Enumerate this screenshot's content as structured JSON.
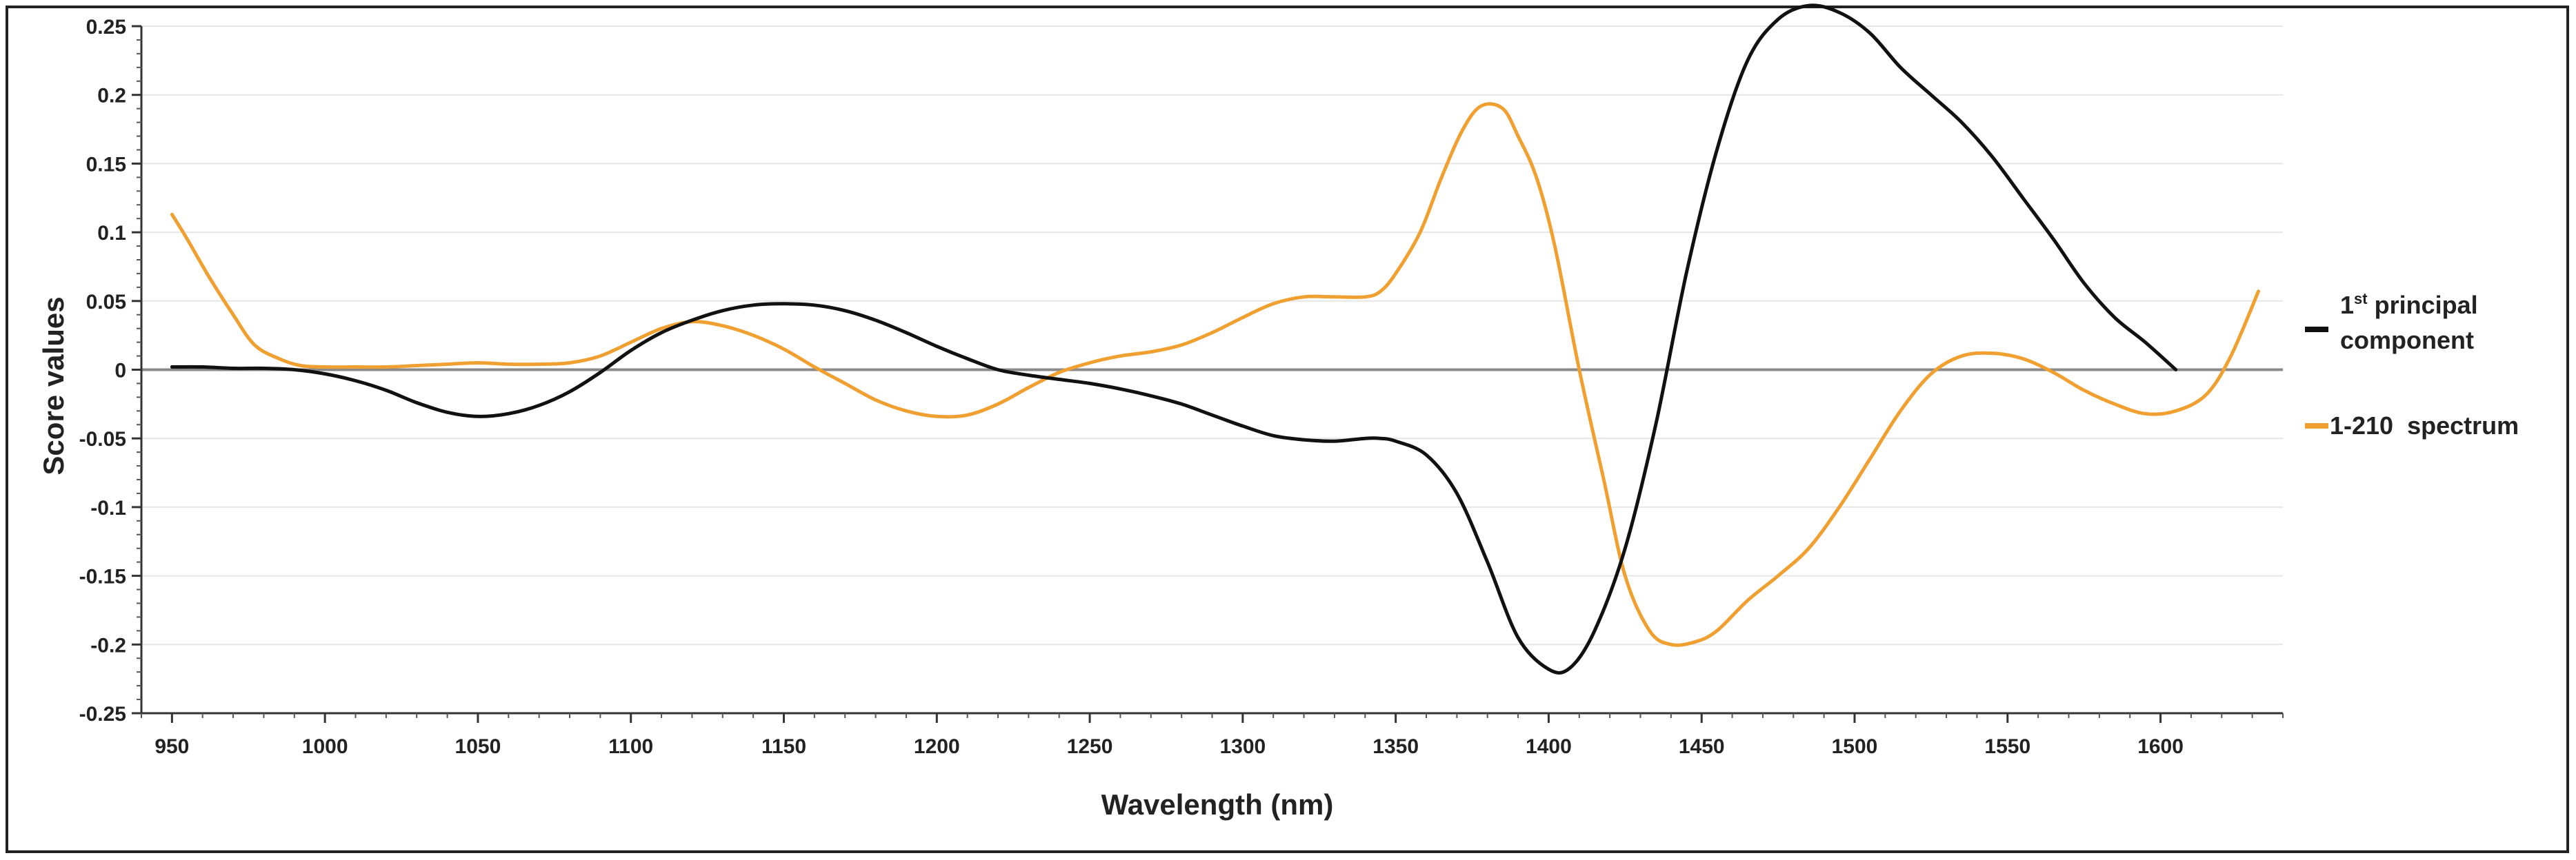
{
  "chart_data": {
    "type": "line",
    "title": "",
    "xlabel": "Wavelength (nm)",
    "ylabel": "Score values",
    "xlim": [
      940,
      1640
    ],
    "ylim": [
      -0.25,
      0.25
    ],
    "x_ticks": [
      950,
      1000,
      1050,
      1100,
      1150,
      1200,
      1250,
      1300,
      1350,
      1400,
      1450,
      1500,
      1550,
      1600
    ],
    "x_tick_labels": [
      "950",
      "1000",
      "1050",
      "1100",
      "1150",
      "1200",
      "1250",
      "1300",
      "1350",
      "1400",
      "1450",
      "1500",
      "1550",
      "1600"
    ],
    "y_ticks": [
      0.25,
      0.2,
      0.15,
      0.1,
      0.05,
      0,
      -0.05,
      -0.1,
      -0.15,
      -0.2,
      -0.25
    ],
    "y_tick_labels": [
      "0.25",
      "0.2",
      "0.15",
      "0.1",
      "0.05",
      "0",
      "-0.05",
      "-0.1",
      "-0.15",
      "-0.2",
      "-0.25"
    ],
    "grid": true,
    "legend_position": "right",
    "series": [
      {
        "name": "1st principal component",
        "legend_main": "1",
        "legend_sup": "st",
        "legend_rest": "principal",
        "legend_line2": "component",
        "color": "#111111",
        "x": [
          950,
          960,
          970,
          980,
          990,
          1000,
          1010,
          1020,
          1030,
          1040,
          1050,
          1060,
          1070,
          1080,
          1090,
          1100,
          1110,
          1120,
          1130,
          1140,
          1150,
          1160,
          1170,
          1180,
          1190,
          1200,
          1210,
          1220,
          1230,
          1240,
          1250,
          1260,
          1270,
          1280,
          1290,
          1300,
          1310,
          1320,
          1330,
          1340,
          1345,
          1350,
          1360,
          1370,
          1380,
          1390,
          1400,
          1407,
          1415,
          1425,
          1435,
          1445,
          1455,
          1465,
          1475,
          1485,
          1495,
          1505,
          1515,
          1525,
          1535,
          1545,
          1555,
          1565,
          1575,
          1585,
          1595,
          1605
        ],
        "values": [
          0.002,
          0.002,
          0.001,
          0.001,
          0.0,
          -0.003,
          -0.008,
          -0.015,
          -0.024,
          -0.031,
          -0.034,
          -0.032,
          -0.026,
          -0.016,
          -0.002,
          0.014,
          0.027,
          0.036,
          0.043,
          0.047,
          0.048,
          0.047,
          0.043,
          0.036,
          0.027,
          0.017,
          0.008,
          0.0,
          -0.004,
          -0.007,
          -0.01,
          -0.014,
          -0.019,
          -0.025,
          -0.033,
          -0.041,
          -0.048,
          -0.051,
          -0.052,
          -0.05,
          -0.05,
          -0.052,
          -0.062,
          -0.09,
          -0.14,
          -0.195,
          -0.218,
          -0.217,
          -0.19,
          -0.13,
          -0.04,
          0.07,
          0.16,
          0.225,
          0.255,
          0.265,
          0.26,
          0.245,
          0.22,
          0.2,
          0.18,
          0.155,
          0.125,
          0.095,
          0.063,
          0.038,
          0.02,
          0.0
        ]
      },
      {
        "name": "1-210 spectrum",
        "legend_main": "1-210  spectrum",
        "color": "#F0A030",
        "x": [
          950,
          955,
          962,
          970,
          977,
          985,
          992,
          1000,
          1010,
          1020,
          1030,
          1040,
          1050,
          1060,
          1070,
          1080,
          1090,
          1100,
          1110,
          1120,
          1130,
          1140,
          1150,
          1160,
          1170,
          1180,
          1190,
          1200,
          1210,
          1220,
          1230,
          1240,
          1250,
          1260,
          1270,
          1280,
          1290,
          1300,
          1310,
          1320,
          1330,
          1340,
          1345,
          1350,
          1358,
          1365,
          1372,
          1378,
          1385,
          1390,
          1396,
          1402,
          1410,
          1418,
          1425,
          1433,
          1440,
          1448,
          1455,
          1465,
          1475,
          1485,
          1495,
          1505,
          1515,
          1525,
          1535,
          1545,
          1555,
          1565,
          1575,
          1585,
          1595,
          1605,
          1615,
          1623,
          1632
        ],
        "values": [
          0.113,
          0.095,
          0.068,
          0.04,
          0.018,
          0.008,
          0.003,
          0.002,
          0.002,
          0.002,
          0.003,
          0.004,
          0.005,
          0.004,
          0.004,
          0.005,
          0.01,
          0.02,
          0.03,
          0.035,
          0.032,
          0.025,
          0.015,
          0.002,
          -0.01,
          -0.022,
          -0.03,
          -0.034,
          -0.033,
          -0.025,
          -0.013,
          -0.002,
          0.005,
          0.01,
          0.013,
          0.018,
          0.027,
          0.038,
          0.048,
          0.053,
          0.053,
          0.053,
          0.057,
          0.07,
          0.1,
          0.14,
          0.175,
          0.192,
          0.19,
          0.17,
          0.14,
          0.09,
          0.0,
          -0.08,
          -0.15,
          -0.19,
          -0.2,
          -0.198,
          -0.19,
          -0.168,
          -0.15,
          -0.13,
          -0.1,
          -0.065,
          -0.03,
          -0.003,
          0.01,
          0.012,
          0.008,
          -0.002,
          -0.015,
          -0.025,
          -0.032,
          -0.03,
          -0.018,
          0.01,
          0.057
        ]
      }
    ]
  }
}
